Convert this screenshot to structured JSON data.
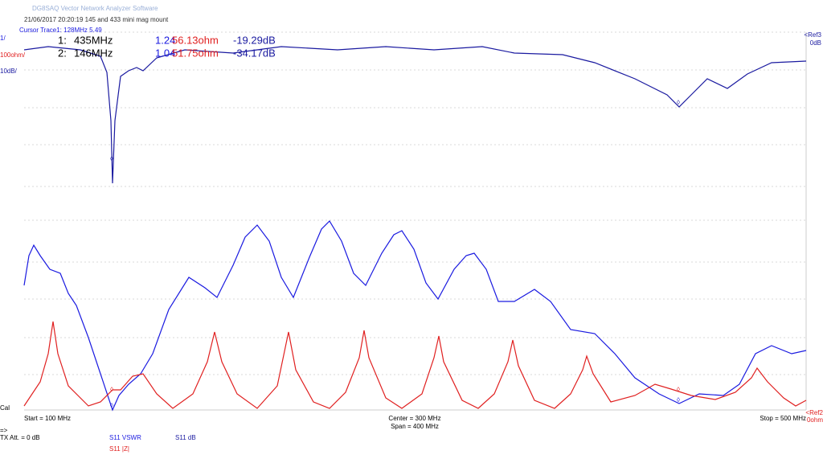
{
  "header": {
    "title": "DG8SAQ Vector Network Analyzer Software",
    "info": "21/06/2017   20:20:19    145 and 433 mini mag mount"
  },
  "cursor": "Cursor Trace1:   128MHz      5.49",
  "scales": {
    "vswr": "1/",
    "z": "100ohm/",
    "db": "10dB/"
  },
  "markers": [
    {
      "id": "1:",
      "freq": "435MHz",
      "vswr": "1.24",
      "z": "56.13ohm",
      "db": "-19.29dB"
    },
    {
      "id": "2:",
      "freq": "146MHz",
      "vswr": "1.04",
      "z": "51.75ohm",
      "db": "-34.17dB"
    }
  ],
  "refs": {
    "ref3": "<Ref3",
    "ref3_val": "0dB",
    "ref2": "<Ref2",
    "ref2_val": "0ohm"
  },
  "cal": "Cal",
  "footer": {
    "start": "Start = 100 MHz",
    "center": "Center = 300 MHz",
    "span": "Span = 400 MHz",
    "stop": "Stop = 500 MHz",
    "arrow": "=>",
    "tx": "TX Att.   = 0 dB"
  },
  "legend": {
    "vswr": "S11   VSWR",
    "db": "S11   dB",
    "z": "S11   |Z|"
  }
}
